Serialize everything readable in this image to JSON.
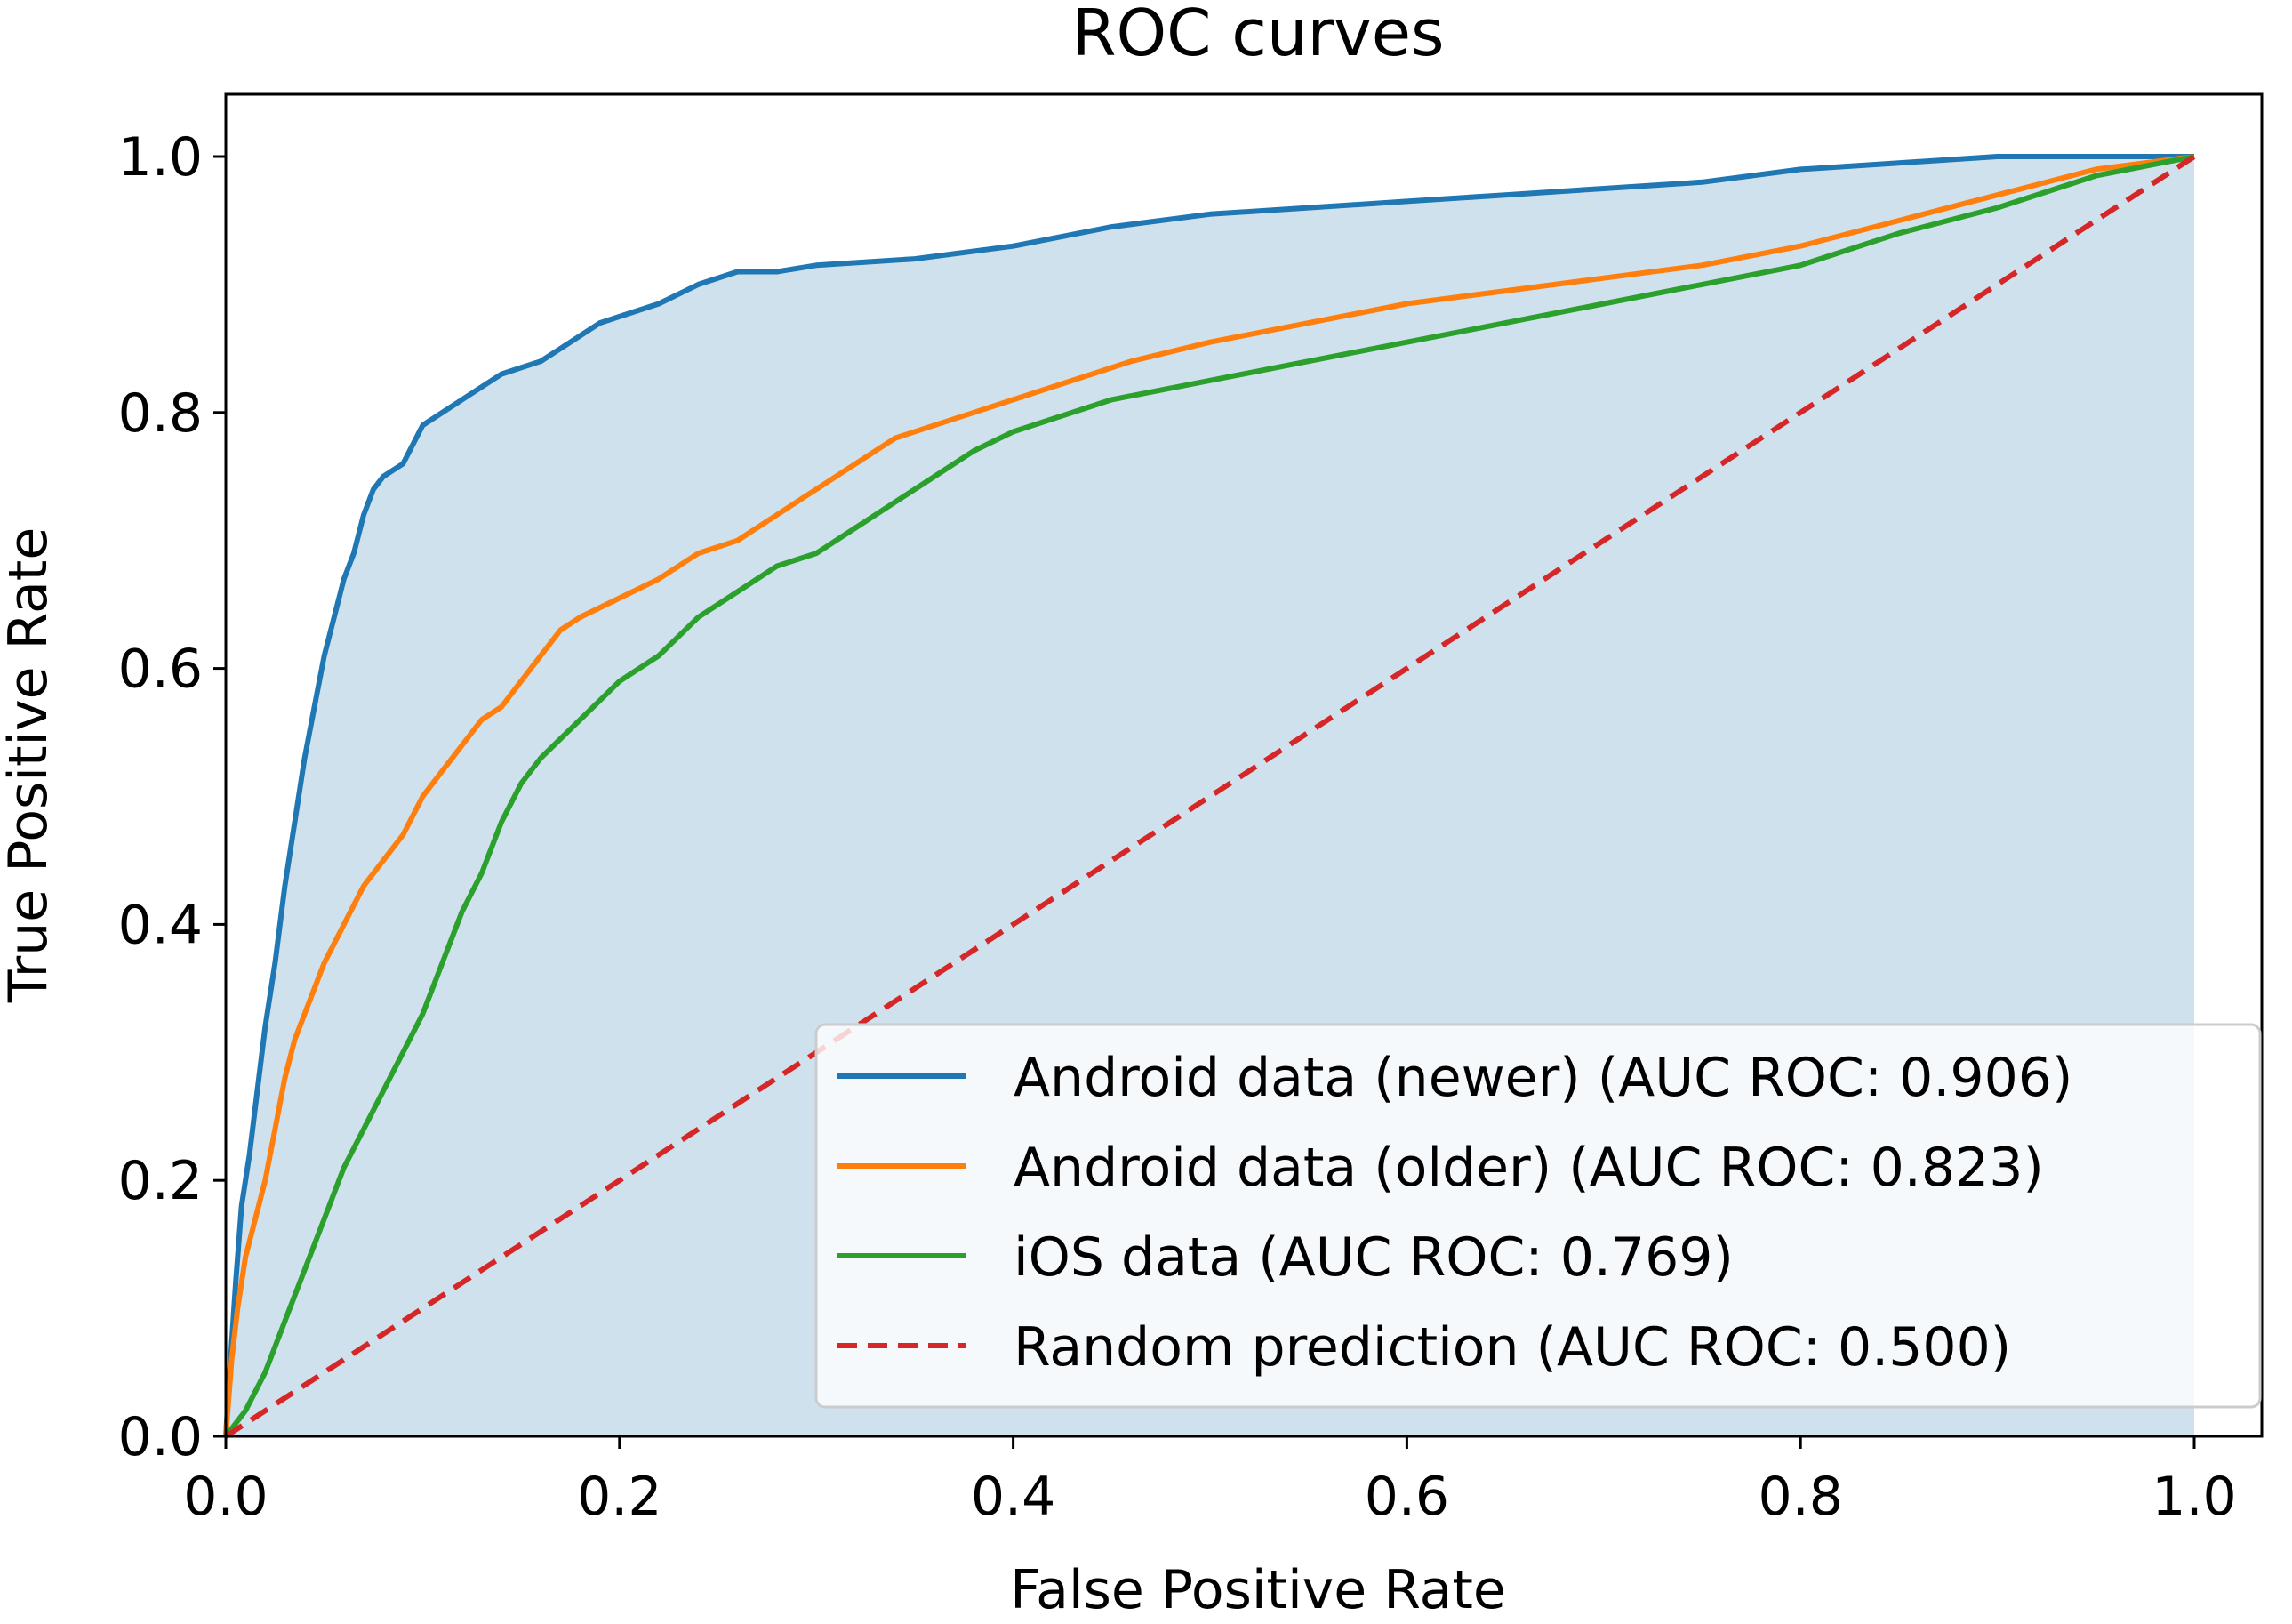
{
  "chart_data": {
    "type": "line",
    "title": "ROC curves",
    "xlabel": "False Positive Rate",
    "ylabel": "True Positive Rate",
    "xlim": [
      0.0,
      1.0
    ],
    "ylim": [
      0.0,
      1.0
    ],
    "xticks": [
      "0.0",
      "0.2",
      "0.4",
      "0.6",
      "0.8",
      "1.0"
    ],
    "yticks": [
      "0.0",
      "0.2",
      "0.4",
      "0.6",
      "0.8",
      "1.0"
    ],
    "grid": false,
    "legend_position": "lower-right",
    "fill_under": {
      "series": "Android data (newer) (AUC ROC: 0.906)",
      "color": "#d0e1ee"
    },
    "series": [
      {
        "name": "Android data (newer) (AUC ROC: 0.906)",
        "color": "#1f77b4",
        "style": "solid",
        "points": [
          [
            0,
            0
          ],
          [
            0.002,
            0.05
          ],
          [
            0.005,
            0.12
          ],
          [
            0.008,
            0.18
          ],
          [
            0.012,
            0.22
          ],
          [
            0.016,
            0.27
          ],
          [
            0.02,
            0.32
          ],
          [
            0.025,
            0.37
          ],
          [
            0.03,
            0.43
          ],
          [
            0.035,
            0.48
          ],
          [
            0.04,
            0.53
          ],
          [
            0.045,
            0.57
          ],
          [
            0.05,
            0.61
          ],
          [
            0.055,
            0.64
          ],
          [
            0.06,
            0.67
          ],
          [
            0.065,
            0.69
          ],
          [
            0.07,
            0.72
          ],
          [
            0.075,
            0.74
          ],
          [
            0.08,
            0.75
          ],
          [
            0.09,
            0.76
          ],
          [
            0.1,
            0.79
          ],
          [
            0.11,
            0.8
          ],
          [
            0.12,
            0.81
          ],
          [
            0.13,
            0.82
          ],
          [
            0.14,
            0.83
          ],
          [
            0.15,
            0.835
          ],
          [
            0.16,
            0.84
          ],
          [
            0.17,
            0.85
          ],
          [
            0.18,
            0.86
          ],
          [
            0.19,
            0.87
          ],
          [
            0.2,
            0.875
          ],
          [
            0.22,
            0.885
          ],
          [
            0.24,
            0.9
          ],
          [
            0.26,
            0.91
          ],
          [
            0.28,
            0.91
          ],
          [
            0.3,
            0.915
          ],
          [
            0.35,
            0.92
          ],
          [
            0.4,
            0.93
          ],
          [
            0.45,
            0.945
          ],
          [
            0.5,
            0.955
          ],
          [
            0.55,
            0.96
          ],
          [
            0.6,
            0.965
          ],
          [
            0.65,
            0.97
          ],
          [
            0.7,
            0.975
          ],
          [
            0.75,
            0.98
          ],
          [
            0.8,
            0.99
          ],
          [
            0.85,
            0.995
          ],
          [
            0.9,
            1.0
          ],
          [
            1.0,
            1.0
          ]
        ]
      },
      {
        "name": "Android data (older) (AUC ROC: 0.823)",
        "color": "#ff7f0e",
        "style": "solid",
        "points": [
          [
            0,
            0
          ],
          [
            0.003,
            0.06
          ],
          [
            0.006,
            0.1
          ],
          [
            0.01,
            0.14
          ],
          [
            0.015,
            0.17
          ],
          [
            0.02,
            0.2
          ],
          [
            0.025,
            0.24
          ],
          [
            0.03,
            0.28
          ],
          [
            0.035,
            0.31
          ],
          [
            0.04,
            0.33
          ],
          [
            0.05,
            0.37
          ],
          [
            0.06,
            0.4
          ],
          [
            0.07,
            0.43
          ],
          [
            0.08,
            0.45
          ],
          [
            0.09,
            0.47
          ],
          [
            0.1,
            0.5
          ],
          [
            0.11,
            0.52
          ],
          [
            0.12,
            0.54
          ],
          [
            0.13,
            0.56
          ],
          [
            0.14,
            0.57
          ],
          [
            0.15,
            0.59
          ],
          [
            0.16,
            0.61
          ],
          [
            0.17,
            0.63
          ],
          [
            0.18,
            0.64
          ],
          [
            0.2,
            0.655
          ],
          [
            0.22,
            0.67
          ],
          [
            0.24,
            0.69
          ],
          [
            0.26,
            0.7
          ],
          [
            0.28,
            0.72
          ],
          [
            0.3,
            0.74
          ],
          [
            0.32,
            0.76
          ],
          [
            0.34,
            0.78
          ],
          [
            0.36,
            0.79
          ],
          [
            0.38,
            0.8
          ],
          [
            0.4,
            0.81
          ],
          [
            0.42,
            0.82
          ],
          [
            0.44,
            0.83
          ],
          [
            0.46,
            0.84
          ],
          [
            0.5,
            0.855
          ],
          [
            0.55,
            0.87
          ],
          [
            0.6,
            0.885
          ],
          [
            0.65,
            0.895
          ],
          [
            0.7,
            0.905
          ],
          [
            0.75,
            0.915
          ],
          [
            0.8,
            0.93
          ],
          [
            0.85,
            0.95
          ],
          [
            0.9,
            0.97
          ],
          [
            0.95,
            0.99
          ],
          [
            1.0,
            1.0
          ]
        ]
      },
      {
        "name": "iOS data (AUC ROC: 0.769)",
        "color": "#2ca02c",
        "style": "solid",
        "points": [
          [
            0,
            0
          ],
          [
            0.01,
            0.02
          ],
          [
            0.02,
            0.05
          ],
          [
            0.03,
            0.09
          ],
          [
            0.04,
            0.13
          ],
          [
            0.05,
            0.17
          ],
          [
            0.06,
            0.21
          ],
          [
            0.07,
            0.24
          ],
          [
            0.08,
            0.27
          ],
          [
            0.09,
            0.3
          ],
          [
            0.1,
            0.33
          ],
          [
            0.11,
            0.37
          ],
          [
            0.12,
            0.41
          ],
          [
            0.13,
            0.44
          ],
          [
            0.14,
            0.48
          ],
          [
            0.15,
            0.51
          ],
          [
            0.16,
            0.53
          ],
          [
            0.17,
            0.545
          ],
          [
            0.18,
            0.56
          ],
          [
            0.19,
            0.575
          ],
          [
            0.2,
            0.59
          ],
          [
            0.22,
            0.61
          ],
          [
            0.24,
            0.64
          ],
          [
            0.26,
            0.66
          ],
          [
            0.28,
            0.68
          ],
          [
            0.3,
            0.69
          ],
          [
            0.32,
            0.71
          ],
          [
            0.34,
            0.73
          ],
          [
            0.36,
            0.75
          ],
          [
            0.38,
            0.77
          ],
          [
            0.4,
            0.785
          ],
          [
            0.42,
            0.795
          ],
          [
            0.45,
            0.81
          ],
          [
            0.5,
            0.825
          ],
          [
            0.55,
            0.84
          ],
          [
            0.6,
            0.855
          ],
          [
            0.65,
            0.87
          ],
          [
            0.7,
            0.885
          ],
          [
            0.75,
            0.9
          ],
          [
            0.8,
            0.915
          ],
          [
            0.85,
            0.94
          ],
          [
            0.9,
            0.96
          ],
          [
            0.95,
            0.985
          ],
          [
            1.0,
            1.0
          ]
        ]
      },
      {
        "name": "Random prediction (AUC ROC: 0.500)",
        "color": "#d62728",
        "style": "dashed",
        "points": [
          [
            0,
            0
          ],
          [
            1,
            1
          ]
        ]
      }
    ]
  }
}
